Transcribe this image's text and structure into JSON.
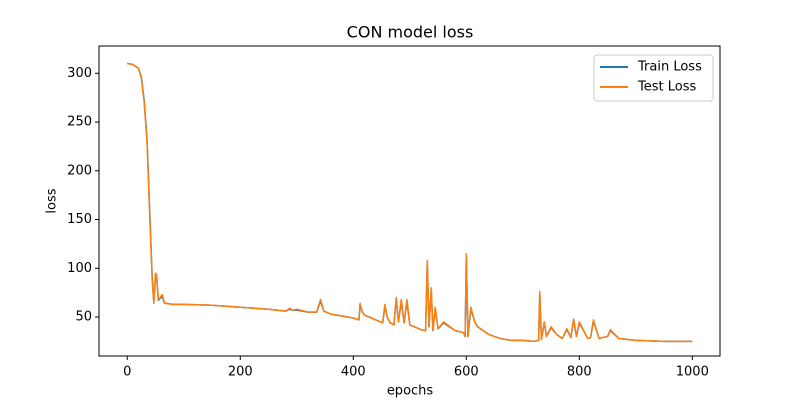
{
  "chart_data": {
    "type": "line",
    "title": "CON model loss",
    "xlabel": "epochs",
    "ylabel": "loss",
    "x": [
      0,
      10,
      20,
      25,
      30,
      35,
      40,
      44,
      47,
      50,
      52,
      55,
      58,
      62,
      66,
      70,
      80,
      100,
      150,
      200,
      250,
      280,
      288,
      292,
      300,
      320,
      335,
      342,
      348,
      360,
      380,
      400,
      410,
      412,
      416,
      420,
      440,
      452,
      456,
      460,
      465,
      472,
      476,
      480,
      485,
      490,
      495,
      500,
      520,
      528,
      531,
      534,
      538,
      541,
      545,
      550,
      560,
      580,
      595,
      598,
      600,
      603,
      608,
      615,
      620,
      640,
      660,
      680,
      700,
      720,
      728,
      730,
      733,
      738,
      742,
      750,
      760,
      770,
      778,
      785,
      790,
      795,
      800,
      815,
      820,
      825,
      835,
      850,
      855,
      870,
      900,
      950,
      1000
    ],
    "series": [
      {
        "name": "Train Loss",
        "color": "#1f77b4",
        "values": [
          310,
          309,
          305,
          296,
          272,
          232,
          155,
          92,
          65,
          93,
          91,
          67,
          69,
          71,
          64,
          64,
          63,
          63,
          62,
          60,
          58,
          56,
          58,
          57,
          57,
          55,
          55,
          66,
          56,
          53,
          51,
          49,
          47,
          62,
          55,
          52,
          47,
          44,
          61,
          50,
          44,
          42,
          68,
          45,
          66,
          44,
          66,
          42,
          37,
          36,
          106,
          40,
          78,
          36,
          58,
          38,
          44,
          36,
          34,
          30,
          113,
          30,
          58,
          45,
          40,
          32,
          28,
          26,
          26,
          25,
          26,
          74,
          27,
          44,
          30,
          39,
          32,
          28,
          37,
          29,
          47,
          30,
          44,
          28,
          29,
          46,
          28,
          30,
          36,
          28,
          26,
          25,
          25
        ]
      },
      {
        "name": "Test Loss",
        "color": "#ff7f0e",
        "values": [
          310,
          309,
          305,
          295,
          270,
          230,
          150,
          90,
          64,
          95,
          93,
          68,
          70,
          73,
          64,
          64,
          63,
          63,
          62,
          60,
          58,
          56,
          59,
          57,
          58,
          55,
          55,
          68,
          56,
          53,
          51,
          49,
          47,
          64,
          55,
          52,
          47,
          44,
          63,
          50,
          44,
          42,
          70,
          45,
          68,
          44,
          68,
          42,
          37,
          36,
          108,
          40,
          80,
          36,
          60,
          38,
          45,
          36,
          34,
          30,
          115,
          30,
          60,
          45,
          40,
          32,
          28,
          26,
          26,
          25,
          26,
          76,
          27,
          45,
          30,
          40,
          32,
          28,
          38,
          29,
          48,
          30,
          45,
          28,
          29,
          47,
          28,
          30,
          37,
          28,
          26,
          25,
          25
        ]
      }
    ],
    "xlim": [
      -50,
      1049
    ],
    "ylim": [
      10,
      328
    ],
    "xticks": [
      0,
      200,
      400,
      600,
      800,
      1000
    ],
    "yticks": [
      50,
      100,
      150,
      200,
      250,
      300
    ],
    "legend": "upper right"
  }
}
